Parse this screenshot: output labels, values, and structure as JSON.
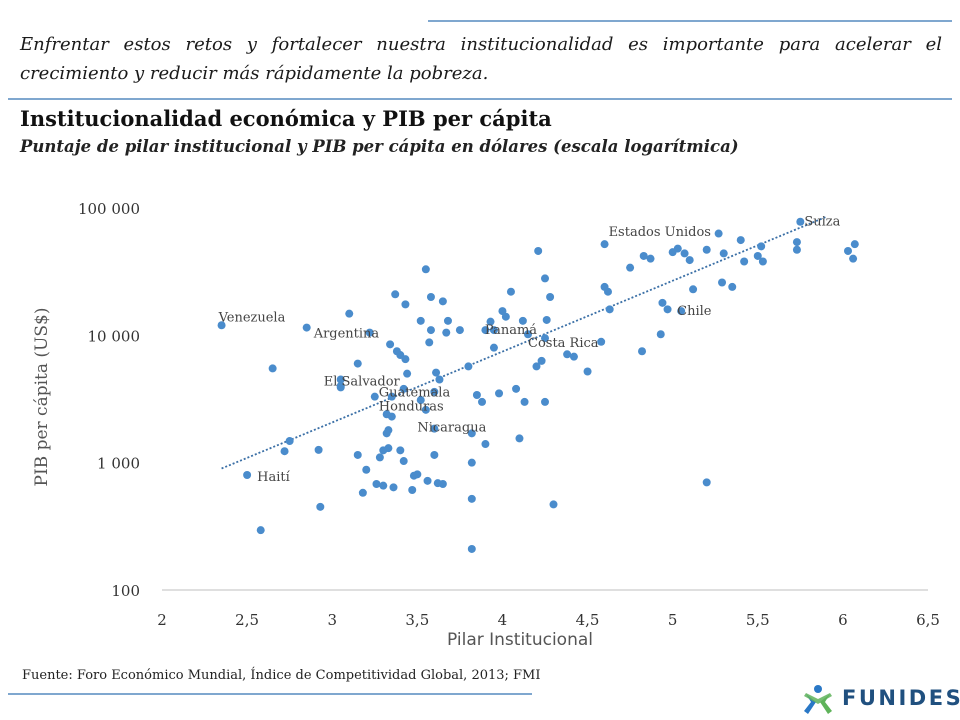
{
  "intro_text": "Enfrentar estos retos y fortalecer nuestra institucionalidad es importante para acelerar el crecimiento y reducir más rápidamente la pobreza.",
  "source": "Fuente: Foro Económico Mundial, Índice de Competitividad Global, 2013; FMI",
  "logo": {
    "text": "FUNIDES",
    "colors": {
      "text": "#20507f",
      "mark_blue": "#2a78c6",
      "mark_green": "#5fb35a"
    }
  },
  "chart_data": {
    "type": "scatter",
    "title": "Institucionalidad  económica y PIB per cápita",
    "subtitle": "Puntaje de pilar institucional y PIB per cápita en dólares (escala logarítmica)",
    "xlabel": "Pilar Institucional",
    "ylabel": "PIB per cápita (US$)",
    "xlim": [
      2,
      6.5
    ],
    "ylim": [
      100,
      100000
    ],
    "yscale": "log",
    "grid": false,
    "legend": "none",
    "point_color": "#4a8ccc",
    "trend_color": "#3a6fa6",
    "x_ticks": [
      "2",
      "2,5",
      "3",
      "3,5",
      "4",
      "4,5",
      "5",
      "5,5",
      "6",
      "6,5"
    ],
    "y_ticks": [
      "100",
      "1 000",
      "10 000",
      "100 000"
    ],
    "trendline": [
      [
        2.35,
        900
      ],
      [
        5.9,
        85000
      ]
    ],
    "labeled_points": [
      {
        "label": "Suiza",
        "x": 5.75,
        "y": 78000
      },
      {
        "label": "Estados Unidos",
        "x": 4.6,
        "y": 52000
      },
      {
        "label": "Chile",
        "x": 5.05,
        "y": 15500
      },
      {
        "label": "Venezuela",
        "x": 2.35,
        "y": 12000
      },
      {
        "label": "Argentina",
        "x": 2.85,
        "y": 11500
      },
      {
        "label": "Panamá",
        "x": 3.95,
        "y": 11000
      },
      {
        "label": "Costa Rica",
        "x": 4.25,
        "y": 9500
      },
      {
        "label": "El Salvador",
        "x": 3.05,
        "y": 3900
      },
      {
        "label": "Guatemala",
        "x": 3.35,
        "y": 3300
      },
      {
        "label": "Honduras",
        "x": 3.35,
        "y": 2300
      },
      {
        "label": "Nicaragua",
        "x": 3.6,
        "y": 1850
      },
      {
        "label": "Haití",
        "x": 2.5,
        "y": 800
      }
    ],
    "points": [
      [
        2.58,
        295
      ],
      [
        2.65,
        5500
      ],
      [
        2.72,
        1230
      ],
      [
        2.75,
        1480
      ],
      [
        2.92,
        1260
      ],
      [
        2.93,
        450
      ],
      [
        3.05,
        4500
      ],
      [
        3.1,
        14800
      ],
      [
        3.05,
        4000
      ],
      [
        3.15,
        6000
      ],
      [
        3.15,
        1150
      ],
      [
        3.18,
        580
      ],
      [
        3.2,
        880
      ],
      [
        3.22,
        10500
      ],
      [
        3.25,
        3300
      ],
      [
        3.26,
        680
      ],
      [
        3.28,
        1100
      ],
      [
        3.3,
        660
      ],
      [
        3.3,
        1250
      ],
      [
        3.32,
        2400
      ],
      [
        3.32,
        1700
      ],
      [
        3.33,
        1800
      ],
      [
        3.33,
        1300
      ],
      [
        3.34,
        8500
      ],
      [
        3.36,
        640
      ],
      [
        3.37,
        21000
      ],
      [
        3.38,
        7500
      ],
      [
        3.4,
        7000
      ],
      [
        3.4,
        1250
      ],
      [
        3.42,
        3800
      ],
      [
        3.42,
        1030
      ],
      [
        3.43,
        6500
      ],
      [
        3.43,
        17500
      ],
      [
        3.44,
        5000
      ],
      [
        3.47,
        610
      ],
      [
        3.48,
        790
      ],
      [
        3.5,
        810
      ],
      [
        3.52,
        13000
      ],
      [
        3.52,
        3100
      ],
      [
        3.55,
        33000
      ],
      [
        3.55,
        2600
      ],
      [
        3.56,
        720
      ],
      [
        3.57,
        8800
      ],
      [
        3.58,
        20000
      ],
      [
        3.58,
        11000
      ],
      [
        3.6,
        1150
      ],
      [
        3.6,
        3600
      ],
      [
        3.61,
        5100
      ],
      [
        3.62,
        690
      ],
      [
        3.63,
        4500
      ],
      [
        3.65,
        18500
      ],
      [
        3.65,
        680
      ],
      [
        3.67,
        10500
      ],
      [
        3.68,
        13000
      ],
      [
        3.75,
        11000
      ],
      [
        3.8,
        5700
      ],
      [
        3.82,
        520
      ],
      [
        3.82,
        210
      ],
      [
        3.82,
        1700
      ],
      [
        3.82,
        1000
      ],
      [
        3.85,
        3400
      ],
      [
        3.88,
        3000
      ],
      [
        3.9,
        1400
      ],
      [
        3.9,
        11000
      ],
      [
        3.93,
        12800
      ],
      [
        3.95,
        8000
      ],
      [
        3.98,
        3500
      ],
      [
        4,
        15500
      ],
      [
        4.02,
        14000
      ],
      [
        4.05,
        22000
      ],
      [
        4.08,
        3800
      ],
      [
        4.1,
        1550
      ],
      [
        4.12,
        13000
      ],
      [
        4.13,
        3000
      ],
      [
        4.15,
        10200
      ],
      [
        4.2,
        5700
      ],
      [
        4.21,
        46000
      ],
      [
        4.23,
        6300
      ],
      [
        4.25,
        28000
      ],
      [
        4.25,
        3000
      ],
      [
        4.26,
        13200
      ],
      [
        4.28,
        20000
      ],
      [
        4.3,
        470
      ],
      [
        4.38,
        7100
      ],
      [
        4.42,
        6800
      ],
      [
        4.5,
        5200
      ],
      [
        4.58,
        8900
      ],
      [
        4.6,
        24000
      ],
      [
        4.62,
        22000
      ],
      [
        4.63,
        16000
      ],
      [
        4.75,
        34000
      ],
      [
        4.82,
        7500
      ],
      [
        4.83,
        42000
      ],
      [
        4.87,
        40000
      ],
      [
        4.93,
        10200
      ],
      [
        4.94,
        18000
      ],
      [
        4.97,
        16000
      ],
      [
        5.0,
        45000
      ],
      [
        5.03,
        48000
      ],
      [
        5.07,
        44000
      ],
      [
        5.1,
        39000
      ],
      [
        5.12,
        23000
      ],
      [
        5.2,
        47000
      ],
      [
        5.2,
        700
      ],
      [
        5.27,
        63000
      ],
      [
        5.29,
        26000
      ],
      [
        5.3,
        44000
      ],
      [
        5.35,
        24000
      ],
      [
        5.4,
        56000
      ],
      [
        5.42,
        38000
      ],
      [
        5.5,
        42000
      ],
      [
        5.52,
        50000
      ],
      [
        5.53,
        38000
      ],
      [
        5.73,
        47000
      ],
      [
        5.73,
        54000
      ],
      [
        6.03,
        46000
      ],
      [
        6.06,
        40000
      ],
      [
        6.07,
        52000
      ]
    ]
  }
}
